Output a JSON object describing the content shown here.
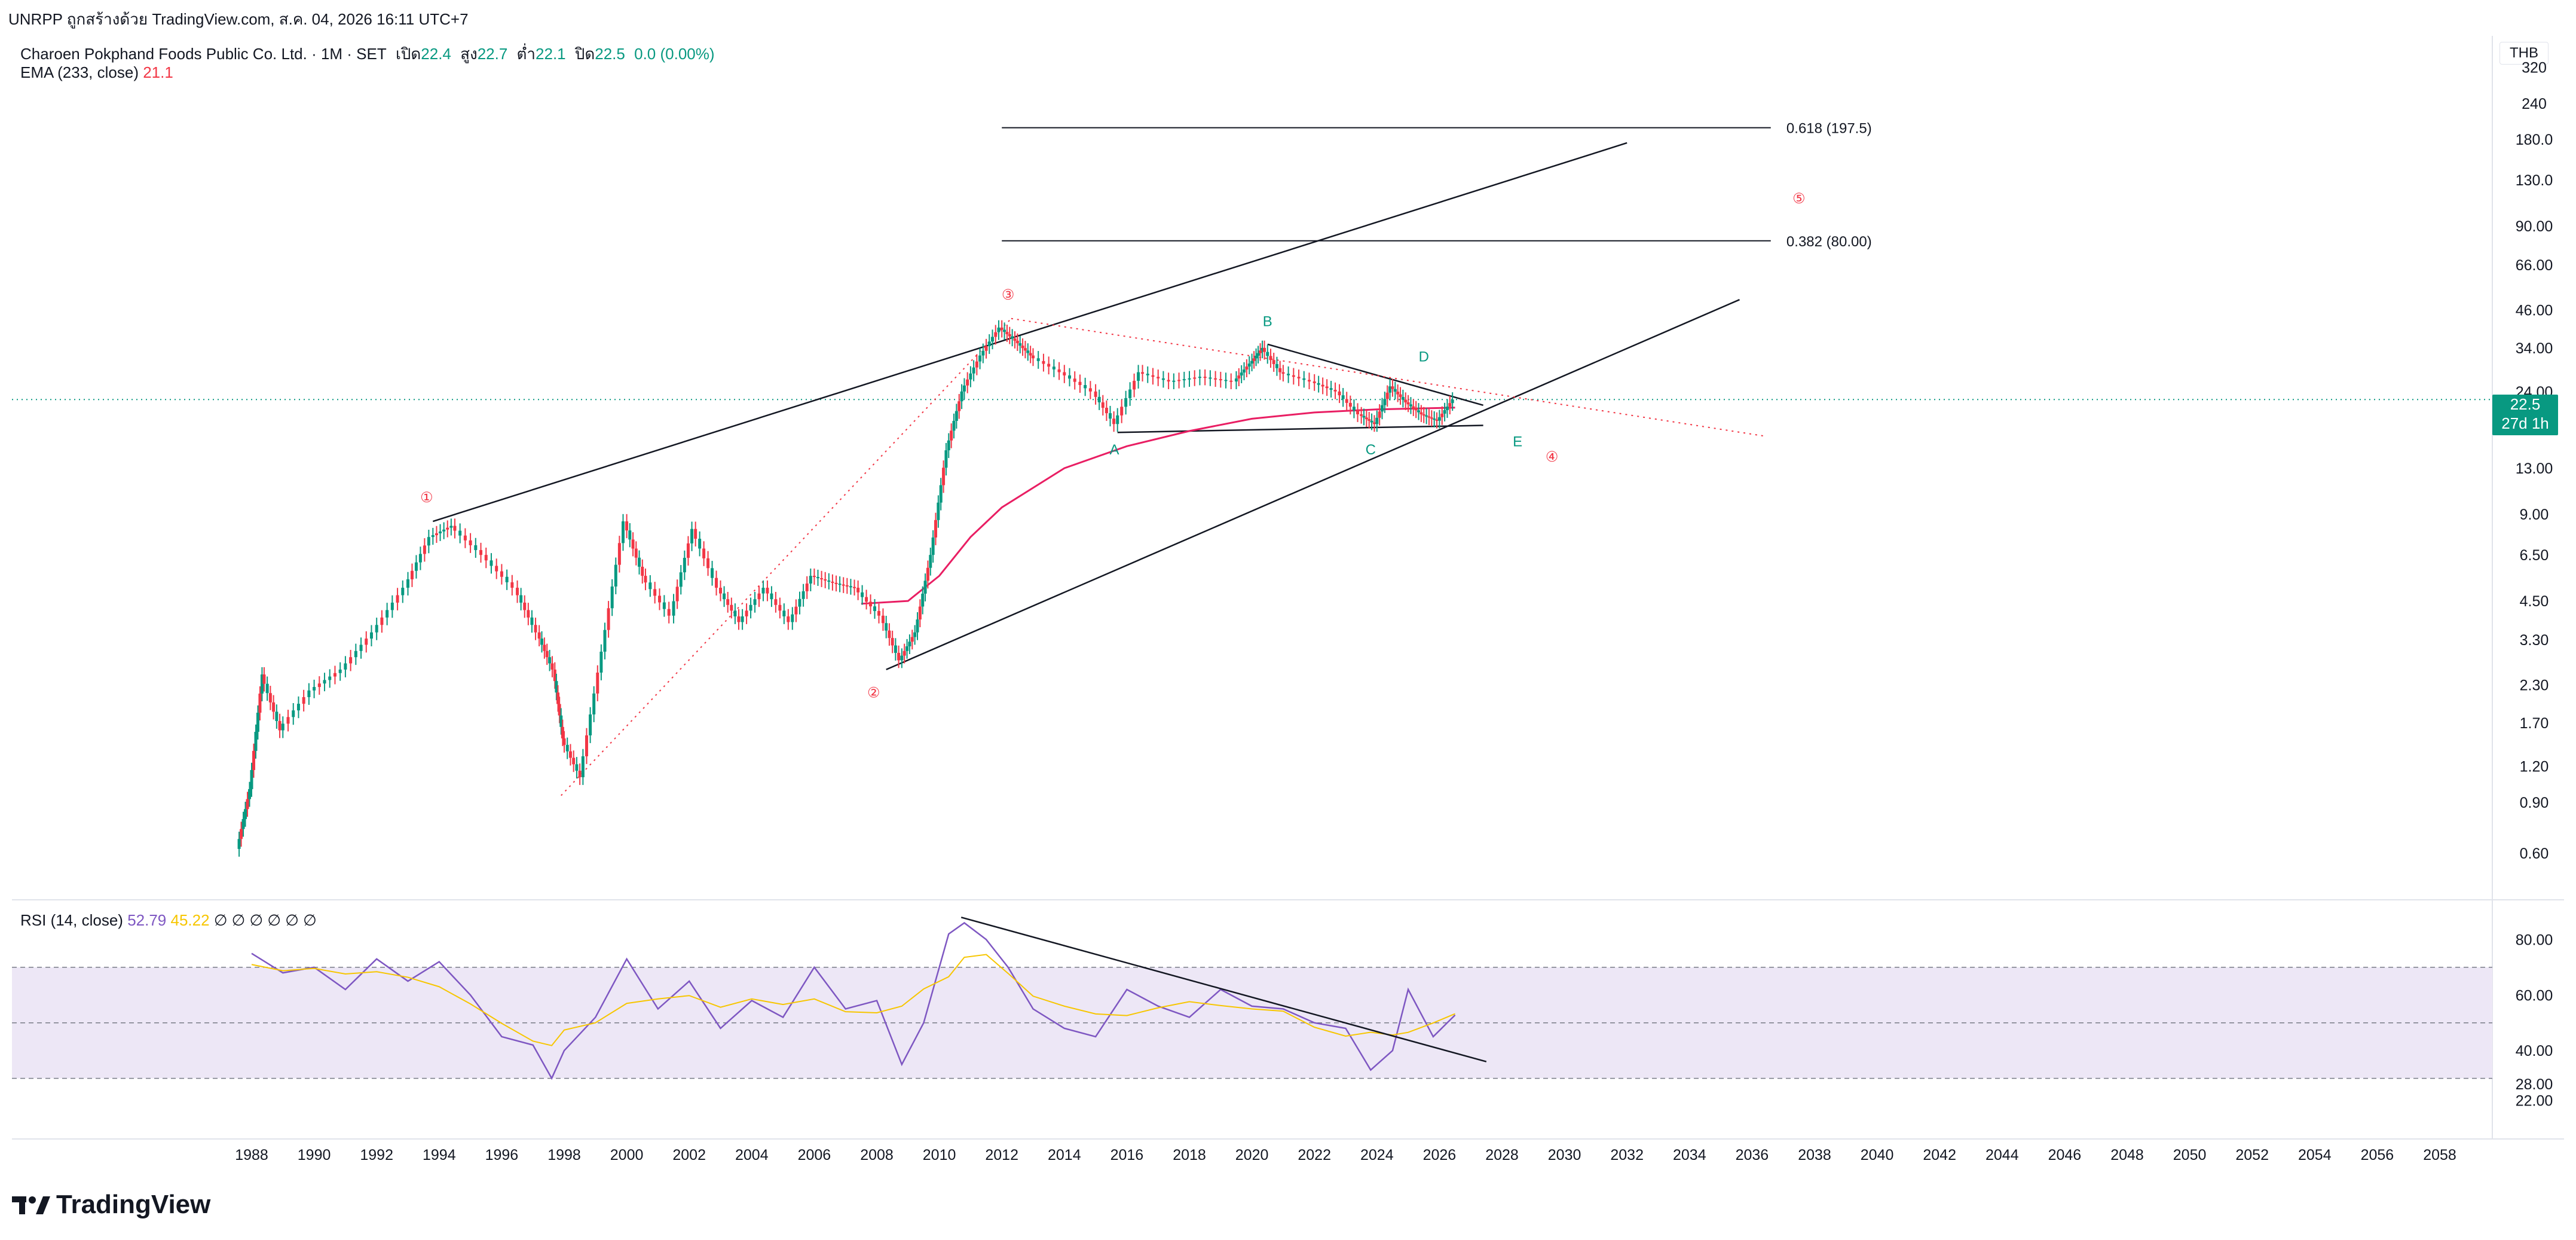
{
  "header": {
    "text": "UNRPP ถูกสร้างด้วย TradingView.com, ส.ค. 04, 2026 16:11 UTC+7"
  },
  "legend": {
    "symbol": "Charoen Pokphand Foods Public Co. Ltd. · 1M · SET",
    "open_label": "เปิด",
    "open_value": "22.4",
    "high_label": "สูง",
    "high_value": "22.7",
    "low_label": "ต่ำ",
    "low_value": "22.1",
    "close_label": "ปิด",
    "close_value": "22.5",
    "change": "0.0 (0.00%)",
    "ema_label": "EMA (233, close)",
    "ema_value": "21.1"
  },
  "rsi_legend": {
    "label": "RSI (14, close)",
    "rsi_value": "52.79",
    "ma_value": "45.22",
    "extra": "∅ ∅ ∅ ∅ ∅ ∅"
  },
  "price_axis": {
    "currency": "THB",
    "ticks": [
      "320",
      "240",
      "180.0",
      "130.0",
      "90.00",
      "66.00",
      "46.00",
      "34.00",
      "24.00",
      "18.00",
      "13.00",
      "9.00",
      "6.50",
      "4.50",
      "3.30",
      "2.30",
      "1.70",
      "1.20",
      "0.90",
      "0.60"
    ],
    "last_price": "22.5",
    "countdown": "27d 1h"
  },
  "rsi_axis": {
    "ticks": [
      "80.00",
      "60.00",
      "40.00",
      "28.00",
      "22.00"
    ]
  },
  "time_axis": {
    "ticks": [
      "1988",
      "1990",
      "1992",
      "1994",
      "1996",
      "1998",
      "2000",
      "2002",
      "2004",
      "2006",
      "2008",
      "2010",
      "2012",
      "2014",
      "2016",
      "2018",
      "2020",
      "2022",
      "2024",
      "2026",
      "2028",
      "2030",
      "2032",
      "2034",
      "2036",
      "2038",
      "2040",
      "2042",
      "2044",
      "2046",
      "2048",
      "2050",
      "2052",
      "2054",
      "2056",
      "2058"
    ]
  },
  "fib_levels": [
    {
      "label": "0.618 (197.5)",
      "value": 197.5
    },
    {
      "label": "0.382 (80.00)",
      "value": 80.0
    }
  ],
  "wave_labels": {
    "major": [
      "①",
      "②",
      "③",
      "④",
      "⑤"
    ],
    "minor": [
      "A",
      "B",
      "C",
      "D",
      "E"
    ]
  },
  "colors": {
    "up": "#089981",
    "down": "#f23645",
    "ema": "#e91e63",
    "rsi": "#7e57c2",
    "rsi_ma": "#f7c600",
    "rsi_band": "#ede7f6",
    "trendline": "#131722",
    "dotted": "#f23645"
  },
  "chart_data": {
    "type": "line",
    "title": "Charoen Pokphand Foods Public Co. Ltd. · 1M · SET",
    "xlabel": "",
    "ylabel": "",
    "log_scale": true,
    "ylim": [
      0.55,
      340
    ],
    "xlim": [
      1987.0,
      2059.0
    ],
    "series": [
      {
        "name": "Charoen Pokphand Foods Public Co. Ltd. · 1M · SET",
        "x": [
          1987.6,
          1988.0,
          1988.4,
          1989.0,
          1990.0,
          1991.0,
          1992.0,
          1993.0,
          1993.8,
          1994.5,
          1995.5,
          1996.5,
          1997.2,
          1997.7,
          1998.0,
          1998.6,
          1999.3,
          2000.0,
          2000.6,
          2001.5,
          2002.2,
          2003.0,
          2003.7,
          2004.5,
          2005.3,
          2006.0,
          2006.7,
          2007.4,
          2008.2,
          2008.8,
          2009.3,
          2009.8,
          2010.3,
          2010.8,
          2011.4,
          2012.0,
          2012.5,
          2013.0,
          2014.0,
          2015.0,
          2015.7,
          2016.5,
          2017.5,
          2018.5,
          2019.5,
          2020.0,
          2020.4,
          2021.0,
          2022.0,
          2022.8,
          2023.5,
          2024.0,
          2024.5,
          2025.0,
          2025.5,
          2026.0,
          2026.5
        ],
        "y": [
          0.62,
          1.0,
          2.5,
          1.6,
          2.2,
          2.6,
          3.5,
          5.0,
          7.5,
          8.2,
          6.5,
          5.0,
          3.5,
          2.6,
          1.5,
          1.1,
          3.0,
          8.5,
          5.5,
          4.0,
          8.0,
          5.0,
          3.8,
          5.0,
          3.8,
          5.5,
          5.2,
          5.0,
          4.0,
          2.8,
          3.5,
          6.5,
          15.0,
          24.0,
          32.0,
          40.0,
          36.0,
          32.0,
          28.0,
          24.0,
          18.5,
          28.0,
          26.0,
          27.0,
          26.0,
          30.0,
          34.0,
          28.0,
          26.0,
          24.0,
          20.0,
          18.5,
          25.0,
          22.0,
          20.0,
          19.0,
          22.5
        ]
      },
      {
        "name": "EMA (233, close)",
        "x": [
          2007.5,
          2009.0,
          2010.0,
          2011.0,
          2012.0,
          2014.0,
          2016.0,
          2018.0,
          2020.0,
          2022.0,
          2024.0,
          2026.5
        ],
        "y": [
          4.4,
          4.5,
          5.5,
          7.5,
          9.5,
          13.0,
          15.5,
          17.5,
          19.3,
          20.3,
          20.8,
          21.1
        ]
      }
    ],
    "rsi": {
      "name": "RSI (14, close)",
      "ylim": [
        20,
        90
      ],
      "bands": [
        70,
        50,
        30
      ],
      "x": [
        1988.0,
        1989.0,
        1990.0,
        1991.0,
        1992.0,
        1993.0,
        1994.0,
        1995.0,
        1996.0,
        1997.0,
        1997.6,
        1998.0,
        1999.0,
        2000.0,
        2001.0,
        2002.0,
        2003.0,
        2004.0,
        2005.0,
        2006.0,
        2007.0,
        2008.0,
        2008.8,
        2009.5,
        2010.3,
        2010.8,
        2011.5,
        2012.2,
        2013.0,
        2014.0,
        2015.0,
        2016.0,
        2017.0,
        2018.0,
        2019.0,
        2020.0,
        2021.0,
        2022.0,
        2023.0,
        2023.8,
        2024.5,
        2025.0,
        2025.8,
        2026.5
      ],
      "values": [
        75,
        68,
        70,
        62,
        73,
        65,
        72,
        60,
        45,
        42,
        30,
        40,
        52,
        73,
        55,
        65,
        48,
        58,
        52,
        70,
        55,
        58,
        35,
        50,
        82,
        86,
        80,
        70,
        55,
        48,
        45,
        62,
        56,
        52,
        62,
        56,
        55,
        50,
        48,
        33,
        40,
        62,
        45,
        52.79
      ]
    }
  }
}
